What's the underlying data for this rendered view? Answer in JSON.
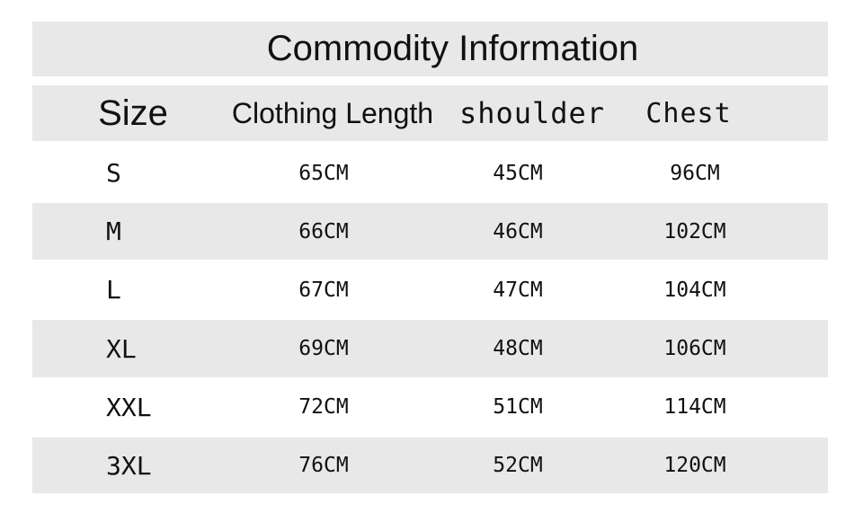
{
  "title": "Commodity Information",
  "headers": [
    "Size",
    "Clothing Length",
    "shoulder",
    "Chest"
  ],
  "rows": [
    [
      "S",
      "65CM",
      "45CM",
      "96CM"
    ],
    [
      "M",
      "66CM",
      "46CM",
      "102CM"
    ],
    [
      "L",
      "67CM",
      "47CM",
      "104CM"
    ],
    [
      "XL",
      "69CM",
      "48CM",
      "106CM"
    ],
    [
      "XXL",
      "72CM",
      "51CM",
      "114CM"
    ],
    [
      "3XL",
      "76CM",
      "52CM",
      "120CM"
    ]
  ],
  "colors": {
    "band": "#e8e8e8",
    "text": "#111111"
  }
}
